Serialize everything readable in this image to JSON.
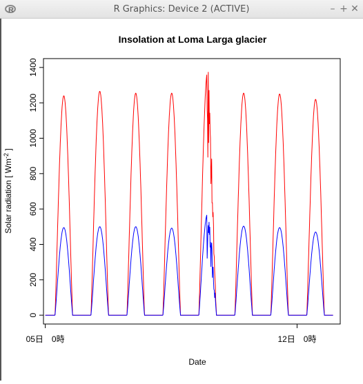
{
  "window": {
    "title": "R Graphics: Device 2 (ACTIVE)",
    "minimize": "–",
    "maximize": "+",
    "close": "✕",
    "app_icon": "r-logo-icon"
  },
  "chart_data": {
    "type": "line",
    "title": "Insolation at Loma Larga glacier",
    "xlabel": "Date",
    "ylabel": "Solar radiation [ Wm",
    "ylabel_sup": "-2",
    "ylabel_end": " ]",
    "ylim": [
      -50,
      1450
    ],
    "yticks": [
      0,
      200,
      400,
      600,
      800,
      1000,
      1200,
      1400
    ],
    "xlim": [
      -0.05,
      8.2
    ],
    "xticks": [
      {
        "x": 0,
        "label": "05日　0時"
      },
      {
        "x": 7,
        "label": "12日　0時"
      }
    ],
    "series": [
      {
        "color": "#ff0000",
        "daily_peaks": [
          1240,
          1265,
          1255,
          1255,
          1380,
          1255,
          1250,
          1220
        ],
        "note_day5": "irregular spikes near 1300-1380"
      },
      {
        "color": "#0000ff",
        "daily_peaks": [
          495,
          500,
          500,
          492,
          575,
          503,
          495,
          470
        ]
      }
    ],
    "day_profile": {
      "sunrise_frac": 0.27,
      "sunset_frac": 0.76,
      "night_value": 0
    },
    "grid": false
  }
}
